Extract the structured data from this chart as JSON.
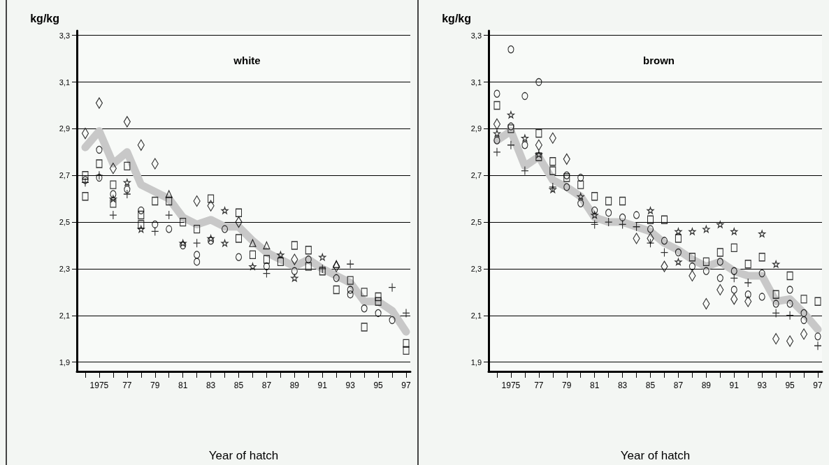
{
  "chart_data": [
    {
      "type": "scatter",
      "title": "white",
      "xlabel": "Year of hatch",
      "ylabel": "kg/kg",
      "xlim": [
        1973.4,
        1997.3
      ],
      "xticks": [
        {
          "value": 1974,
          "label": null
        },
        {
          "value": 1975,
          "label": "1975"
        },
        {
          "value": 1976,
          "label": null
        },
        {
          "value": 1977,
          "label": "77"
        },
        {
          "value": 1978,
          "label": null
        },
        {
          "value": 1979,
          "label": "79"
        },
        {
          "value": 1980,
          "label": null
        },
        {
          "value": 1981,
          "label": "81"
        },
        {
          "value": 1982,
          "label": null
        },
        {
          "value": 1983,
          "label": "83"
        },
        {
          "value": 1984,
          "label": null
        },
        {
          "value": 1985,
          "label": "85"
        },
        {
          "value": 1986,
          "label": null
        },
        {
          "value": 1987,
          "label": "87"
        },
        {
          "value": 1988,
          "label": null
        },
        {
          "value": 1989,
          "label": "89"
        },
        {
          "value": 1990,
          "label": null
        },
        {
          "value": 1991,
          "label": "91"
        },
        {
          "value": 1992,
          "label": null
        },
        {
          "value": 1993,
          "label": "93"
        },
        {
          "value": 1994,
          "label": null
        },
        {
          "value": 1995,
          "label": "95"
        },
        {
          "value": 1996,
          "label": null
        },
        {
          "value": 1997,
          "label": "97"
        }
      ],
      "ylim": [
        1.86,
        3.32
      ],
      "yticks": [
        {
          "value": 1.9,
          "label": "1,9"
        },
        {
          "value": 2.1,
          "label": "2,1"
        },
        {
          "value": 2.3,
          "label": "2,3"
        },
        {
          "value": 2.5,
          "label": "2,5"
        },
        {
          "value": 2.7,
          "label": "2,7"
        },
        {
          "value": 2.9,
          "label": "2,9"
        },
        {
          "value": 3.1,
          "label": "3,1"
        },
        {
          "value": 3.3,
          "label": "3,3"
        }
      ],
      "grid": "y",
      "series": [
        {
          "type": "line",
          "marker": "none",
          "color": "#c8c8c8",
          "x": [
            1974,
            1975,
            1976,
            1977,
            1978,
            1979,
            1980,
            1981,
            1982,
            1983,
            1984,
            1985,
            1986,
            1987,
            1988,
            1989,
            1990,
            1991,
            1992,
            1993,
            1994,
            1995,
            1996,
            1997
          ],
          "values": [
            2.82,
            2.89,
            2.75,
            2.8,
            2.66,
            2.63,
            2.6,
            2.52,
            2.49,
            2.51,
            2.48,
            2.48,
            2.42,
            2.37,
            2.34,
            2.31,
            2.34,
            2.3,
            2.27,
            2.24,
            2.16,
            2.16,
            2.12,
            2.03
          ]
        },
        {
          "marker": "diamond",
          "color": "#000000",
          "x": [
            1974,
            1975,
            1976,
            1977,
            1978,
            1979,
            1982,
            1983,
            1985,
            1989,
            1992
          ],
          "values": [
            2.88,
            3.01,
            2.73,
            2.93,
            2.83,
            2.75,
            2.59,
            2.57,
            2.5,
            2.34,
            2.31
          ]
        },
        {
          "marker": "square",
          "color": "#000000",
          "x": [
            1974,
            1974,
            1975,
            1976,
            1976,
            1977,
            1978,
            1978,
            1979,
            1980,
            1981,
            1982,
            1983,
            1985,
            1985,
            1986,
            1987,
            1988,
            1989,
            1990,
            1990,
            1991,
            1992,
            1993,
            1994,
            1994,
            1995,
            1995,
            1997,
            1997
          ],
          "values": [
            2.7,
            2.61,
            2.75,
            2.66,
            2.58,
            2.74,
            2.53,
            2.49,
            2.59,
            2.59,
            2.5,
            2.47,
            2.6,
            2.54,
            2.43,
            2.36,
            2.34,
            2.33,
            2.4,
            2.38,
            2.31,
            2.29,
            2.21,
            2.25,
            2.2,
            2.05,
            2.18,
            2.16,
            1.98,
            1.95
          ]
        },
        {
          "marker": "circle",
          "color": "#000000",
          "x": [
            1974,
            1975,
            1975,
            1976,
            1977,
            1978,
            1979,
            1980,
            1981,
            1982,
            1982,
            1983,
            1984,
            1985,
            1987,
            1989,
            1990,
            1992,
            1993,
            1993,
            1994,
            1995,
            1996
          ],
          "values": [
            2.68,
            2.81,
            2.69,
            2.62,
            2.64,
            2.55,
            2.49,
            2.47,
            2.4,
            2.36,
            2.33,
            2.42,
            2.47,
            2.35,
            2.31,
            2.29,
            2.34,
            2.26,
            2.21,
            2.19,
            2.13,
            2.11,
            2.08
          ]
        },
        {
          "marker": "cross",
          "color": "#000000",
          "x": [
            1974,
            1975,
            1976,
            1977,
            1979,
            1980,
            1982,
            1987,
            1991,
            1993,
            1996,
            1997
          ],
          "values": [
            2.67,
            2.7,
            2.53,
            2.62,
            2.46,
            2.53,
            2.41,
            2.28,
            2.3,
            2.32,
            2.22,
            2.11
          ]
        },
        {
          "marker": "star",
          "color": "#000000",
          "x": [
            1976,
            1977,
            1978,
            1981,
            1983,
            1984,
            1984,
            1986,
            1988,
            1989,
            1991
          ],
          "values": [
            2.6,
            2.67,
            2.47,
            2.41,
            2.43,
            2.55,
            2.41,
            2.31,
            2.36,
            2.26,
            2.35
          ]
        },
        {
          "marker": "triangle",
          "color": "#000000",
          "x": [
            1980,
            1986,
            1987,
            1992
          ],
          "values": [
            2.62,
            2.41,
            2.4,
            2.32
          ]
        }
      ]
    },
    {
      "type": "scatter",
      "title": "brown",
      "xlabel": "Year of hatch",
      "ylabel": "kg/kg",
      "xlim": [
        1973.4,
        1997.3
      ],
      "xticks": [
        {
          "value": 1974,
          "label": null
        },
        {
          "value": 1975,
          "label": "1975"
        },
        {
          "value": 1976,
          "label": null
        },
        {
          "value": 1977,
          "label": "77"
        },
        {
          "value": 1978,
          "label": null
        },
        {
          "value": 1979,
          "label": "79"
        },
        {
          "value": 1980,
          "label": null
        },
        {
          "value": 1981,
          "label": "81"
        },
        {
          "value": 1982,
          "label": null
        },
        {
          "value": 1983,
          "label": "83"
        },
        {
          "value": 1984,
          "label": null
        },
        {
          "value": 1985,
          "label": "85"
        },
        {
          "value": 1986,
          "label": null
        },
        {
          "value": 1987,
          "label": "87"
        },
        {
          "value": 1988,
          "label": null
        },
        {
          "value": 1989,
          "label": "89"
        },
        {
          "value": 1990,
          "label": null
        },
        {
          "value": 1991,
          "label": "91"
        },
        {
          "value": 1992,
          "label": null
        },
        {
          "value": 1993,
          "label": "93"
        },
        {
          "value": 1994,
          "label": null
        },
        {
          "value": 1995,
          "label": "95"
        },
        {
          "value": 1996,
          "label": null
        },
        {
          "value": 1997,
          "label": "97"
        }
      ],
      "ylim": [
        1.86,
        3.32
      ],
      "yticks": [
        {
          "value": 1.9,
          "label": "1,9"
        },
        {
          "value": 2.1,
          "label": "2,1"
        },
        {
          "value": 2.3,
          "label": "2,3"
        },
        {
          "value": 2.5,
          "label": "2,5"
        },
        {
          "value": 2.7,
          "label": "2,7"
        },
        {
          "value": 2.9,
          "label": "2,9"
        },
        {
          "value": 3.1,
          "label": "3,1"
        },
        {
          "value": 3.3,
          "label": "3,3"
        }
      ],
      "grid": "y",
      "series": [
        {
          "type": "line",
          "marker": "none",
          "color": "#c8c8c8",
          "x": [
            1974,
            1975,
            1976,
            1977,
            1978,
            1979,
            1980,
            1981,
            1982,
            1983,
            1984,
            1985,
            1986,
            1987,
            1988,
            1989,
            1990,
            1991,
            1992,
            1993,
            1994,
            1995,
            1996,
            1997
          ],
          "values": [
            2.85,
            2.89,
            2.74,
            2.78,
            2.68,
            2.65,
            2.61,
            2.52,
            2.5,
            2.5,
            2.48,
            2.46,
            2.41,
            2.38,
            2.34,
            2.31,
            2.33,
            2.29,
            2.27,
            2.27,
            2.16,
            2.17,
            2.11,
            2.04
          ]
        },
        {
          "marker": "diamond",
          "color": "#000000",
          "x": [
            1974,
            1977,
            1978,
            1979,
            1984,
            1985,
            1986,
            1988,
            1989,
            1990,
            1991,
            1992,
            1994,
            1995,
            1996
          ],
          "values": [
            2.92,
            2.83,
            2.86,
            2.77,
            2.43,
            2.43,
            2.31,
            2.27,
            2.15,
            2.21,
            2.17,
            2.16,
            2.0,
            1.99,
            2.02
          ]
        },
        {
          "marker": "square",
          "color": "#000000",
          "x": [
            1974,
            1975,
            1977,
            1977,
            1978,
            1978,
            1979,
            1980,
            1981,
            1982,
            1983,
            1985,
            1986,
            1987,
            1988,
            1989,
            1990,
            1991,
            1992,
            1993,
            1994,
            1995,
            1996,
            1997
          ],
          "values": [
            3.0,
            2.9,
            2.88,
            2.78,
            2.76,
            2.72,
            2.69,
            2.66,
            2.61,
            2.59,
            2.59,
            2.51,
            2.51,
            2.43,
            2.35,
            2.33,
            2.37,
            2.39,
            2.32,
            2.35,
            2.19,
            2.27,
            2.17,
            2.16
          ]
        },
        {
          "marker": "circle",
          "color": "#000000",
          "x": [
            1974,
            1974,
            1975,
            1975,
            1976,
            1976,
            1977,
            1979,
            1979,
            1980,
            1980,
            1981,
            1982,
            1983,
            1984,
            1985,
            1986,
            1987,
            1988,
            1989,
            1990,
            1990,
            1991,
            1991,
            1992,
            1993,
            1993,
            1994,
            1995,
            1995,
            1996,
            1996,
            1997
          ],
          "values": [
            3.05,
            2.85,
            3.24,
            2.91,
            3.04,
            2.83,
            3.1,
            2.7,
            2.65,
            2.69,
            2.58,
            2.55,
            2.54,
            2.52,
            2.53,
            2.47,
            2.42,
            2.37,
            2.31,
            2.29,
            2.33,
            2.26,
            2.29,
            2.21,
            2.19,
            2.28,
            2.18,
            2.15,
            2.21,
            2.15,
            2.11,
            2.08,
            2.01
          ]
        },
        {
          "marker": "cross",
          "color": "#000000",
          "x": [
            1974,
            1975,
            1976,
            1978,
            1981,
            1982,
            1983,
            1984,
            1985,
            1986,
            1991,
            1992,
            1994,
            1995,
            1997
          ],
          "values": [
            2.8,
            2.83,
            2.72,
            2.65,
            2.49,
            2.5,
            2.49,
            2.48,
            2.41,
            2.37,
            2.26,
            2.24,
            2.11,
            2.1,
            1.97
          ]
        },
        {
          "marker": "star",
          "color": "#000000",
          "x": [
            1974,
            1975,
            1976,
            1977,
            1978,
            1980,
            1981,
            1985,
            1987,
            1987,
            1988,
            1989,
            1990,
            1991,
            1993,
            1994
          ],
          "values": [
            2.88,
            2.96,
            2.86,
            2.79,
            2.64,
            2.61,
            2.53,
            2.55,
            2.46,
            2.33,
            2.46,
            2.47,
            2.49,
            2.46,
            2.45,
            2.32
          ]
        }
      ]
    }
  ]
}
